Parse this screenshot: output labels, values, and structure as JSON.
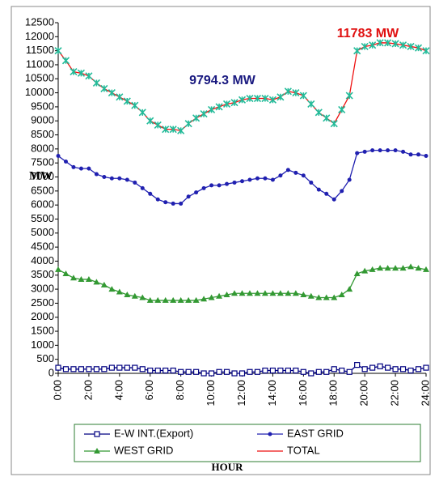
{
  "chart_data": {
    "type": "line",
    "ylabel": "MW",
    "xlabel": "HOUR",
    "annotations": [
      "9794.3 MW",
      "11783 MW"
    ],
    "x": [
      0,
      0.5,
      1,
      1.5,
      2,
      2.5,
      3,
      3.5,
      4,
      4.5,
      5,
      5.5,
      6,
      6.5,
      7,
      7.5,
      8,
      8.5,
      9,
      9.5,
      10,
      10.5,
      11,
      11.5,
      12,
      12.5,
      13,
      13.5,
      14,
      14.5,
      15,
      15.5,
      16,
      16.5,
      17,
      17.5,
      18,
      18.5,
      19,
      19.5,
      20,
      20.5,
      21,
      21.5,
      22,
      22.5,
      23,
      23.5,
      24
    ],
    "xlim": [
      0,
      24
    ],
    "xticks": [
      {
        "value": 0,
        "label": "0:00"
      },
      {
        "value": 2,
        "label": "2:00"
      },
      {
        "value": 4,
        "label": "4:00"
      },
      {
        "value": 6,
        "label": "6:00"
      },
      {
        "value": 8,
        "label": "8:00"
      },
      {
        "value": 10,
        "label": "10:00"
      },
      {
        "value": 12,
        "label": "12:00"
      },
      {
        "value": 14,
        "label": "14:00"
      },
      {
        "value": 16,
        "label": "16:00"
      },
      {
        "value": 18,
        "label": "18:00"
      },
      {
        "value": 20,
        "label": "20:00"
      },
      {
        "value": 22,
        "label": "22:00"
      },
      {
        "value": 24,
        "label": "24:00"
      }
    ],
    "ylim": [
      0,
      12500
    ],
    "yticks": [
      0,
      500,
      1000,
      1500,
      2000,
      2500,
      3000,
      3500,
      4000,
      4500,
      5000,
      5500,
      6000,
      6500,
      7000,
      7500,
      8000,
      8500,
      9000,
      9500,
      10000,
      10500,
      11000,
      11500,
      12000,
      12500
    ],
    "series": [
      {
        "name": "E-W INT.(Export)",
        "color": "#000080",
        "marker": "square",
        "values": [
          200,
          150,
          150,
          150,
          150,
          150,
          150,
          200,
          200,
          200,
          200,
          150,
          100,
          100,
          100,
          100,
          50,
          50,
          50,
          0,
          0,
          50,
          50,
          0,
          0,
          50,
          50,
          100,
          100,
          100,
          100,
          100,
          50,
          0,
          50,
          50,
          150,
          100,
          50,
          300,
          150,
          200,
          250,
          200,
          150,
          150,
          100,
          150,
          200
        ]
      },
      {
        "name": "EAST GRID",
        "color": "#2020b0",
        "marker": "circle",
        "values": [
          7750,
          7550,
          7350,
          7300,
          7300,
          7100,
          7000,
          6950,
          6950,
          6900,
          6800,
          6600,
          6400,
          6200,
          6100,
          6050,
          6050,
          6300,
          6450,
          6600,
          6700,
          6700,
          6750,
          6800,
          6850,
          6900,
          6950,
          6950,
          6900,
          7050,
          7250,
          7150,
          7050,
          6800,
          6550,
          6400,
          6200,
          6500,
          6900,
          7850,
          7900,
          7950,
          7950,
          7950,
          7950,
          7900,
          7800,
          7800,
          7750
        ]
      },
      {
        "name": "WEST GRID",
        "color": "#339933",
        "marker": "triangle",
        "values": [
          3700,
          3550,
          3400,
          3350,
          3350,
          3250,
          3150,
          3000,
          2900,
          2800,
          2750,
          2700,
          2600,
          2600,
          2600,
          2600,
          2600,
          2600,
          2600,
          2650,
          2700,
          2750,
          2800,
          2850,
          2850,
          2850,
          2850,
          2850,
          2850,
          2850,
          2850,
          2850,
          2800,
          2750,
          2700,
          2700,
          2700,
          2800,
          3000,
          3550,
          3650,
          3700,
          3750,
          3750,
          3750,
          3750,
          3800,
          3750,
          3700
        ]
      },
      {
        "name": "TOTAL",
        "color": "#ee1111",
        "marker": "star",
        "marker_color": "#22bb99",
        "values": [
          11500,
          11150,
          10750,
          10700,
          10600,
          10350,
          10150,
          10000,
          9850,
          9700,
          9550,
          9300,
          9000,
          8850,
          8700,
          8700,
          8650,
          8900,
          9100,
          9250,
          9400,
          9500,
          9600,
          9650,
          9750,
          9800,
          9800,
          9800,
          9750,
          9850,
          10050,
          10000,
          9900,
          9600,
          9300,
          9100,
          8900,
          9400,
          9900,
          11500,
          11650,
          11700,
          11783,
          11780,
          11750,
          11700,
          11650,
          11600,
          11500
        ]
      }
    ]
  }
}
